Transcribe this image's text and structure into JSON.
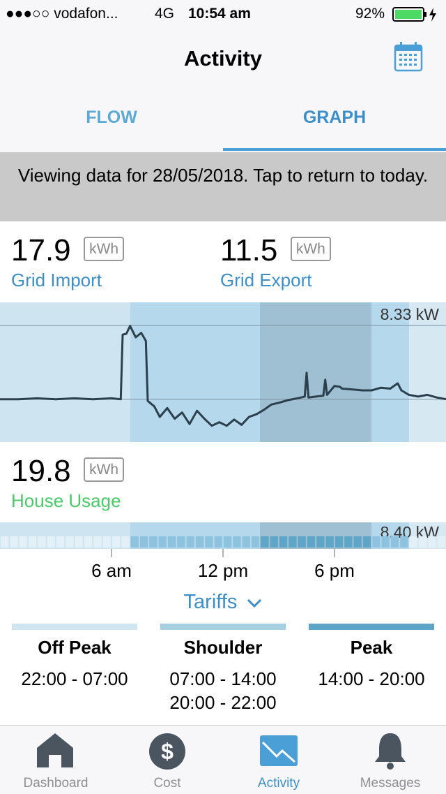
{
  "status_bar": {
    "carrier": "●●●○○ vodafon...",
    "network": "4G",
    "time": "10:54 am",
    "battery": "92%"
  },
  "header": {
    "title": "Activity"
  },
  "tabs": [
    "FLOW",
    "GRAPH"
  ],
  "banner": "Viewing data for 28/05/2018. Tap to return to today.",
  "stats": [
    {
      "value": 17.9,
      "unit": "kWh",
      "label": "Grid Import"
    },
    {
      "value": 11.5,
      "unit": "kWh",
      "label": "Grid Export"
    }
  ],
  "import_chart": {
    "type": "line",
    "color": "#2b3f4d",
    "x": [
      0,
      1,
      2,
      3,
      4,
      5,
      6,
      6.5,
      6.6,
      6.8,
      7.0,
      7.3,
      7.6,
      7.85,
      7.95,
      8.3,
      8.6,
      9.0,
      9.4,
      9.8,
      10.2,
      10.6,
      11.0,
      11.4,
      11.8,
      12.2,
      12.6,
      13.0,
      13.4,
      13.8,
      14.2,
      14.6,
      15.0,
      15.5,
      16.0,
      16.4,
      16.5,
      16.6,
      17.0,
      17.4,
      17.5,
      17.6,
      18.0,
      18.3,
      18.4,
      19.0,
      19.5,
      20.0,
      20.5,
      21.0,
      21.4,
      21.6,
      22.0,
      22.5,
      23.0,
      23.5,
      24
    ],
    "values": [
      0,
      0,
      0.1,
      0,
      0.1,
      0,
      0.1,
      0,
      7.3,
      7.4,
      8.3,
      7.0,
      7.5,
      6.6,
      -0.2,
      -0.8,
      -2.0,
      -1.0,
      -2.2,
      -1.5,
      -2.8,
      -1.3,
      -2.2,
      -3.0,
      -2.6,
      -3.0,
      -2.3,
      -2.9,
      -2.0,
      -1.7,
      -1.2,
      -0.6,
      -0.4,
      -0.1,
      0.1,
      0.3,
      3.0,
      0.2,
      0.3,
      0.4,
      2.2,
      0.5,
      1.5,
      1.4,
      1.2,
      1.1,
      1.0,
      1.0,
      1.3,
      1.2,
      1.8,
      1.0,
      0.5,
      0.3,
      0.5,
      0.2,
      0
    ],
    "xlim": [
      0,
      24
    ],
    "ylim": [
      -4.84,
      10.95
    ],
    "yticks": [
      {
        "value": 8.33,
        "label": "8.33 kW"
      }
    ]
  },
  "house_usage": {
    "value": 19.8,
    "unit": "kWh",
    "label": "House Usage",
    "peak_label": "8.40 kW"
  },
  "time_axis": {
    "xticks": [
      {
        "value": 6,
        "label": "6 am"
      },
      {
        "value": 12,
        "label": "12 pm"
      },
      {
        "value": 18,
        "label": "6 pm"
      }
    ]
  },
  "tariffs": {
    "label": "Tariffs",
    "items": [
      {
        "name": "Off Peak",
        "color": "#cfe5f1",
        "times": [
          "22:00 - 07:00"
        ]
      },
      {
        "name": "Shoulder",
        "color": "#a7cfe4",
        "times": [
          "07:00 - 14:00",
          "20:00 - 22:00"
        ]
      },
      {
        "name": "Peak",
        "color": "#5fa5c8",
        "times": [
          "14:00 - 20:00"
        ]
      }
    ]
  },
  "tab_bar": [
    "Dashboard",
    "Cost",
    "Activity",
    "Messages"
  ]
}
